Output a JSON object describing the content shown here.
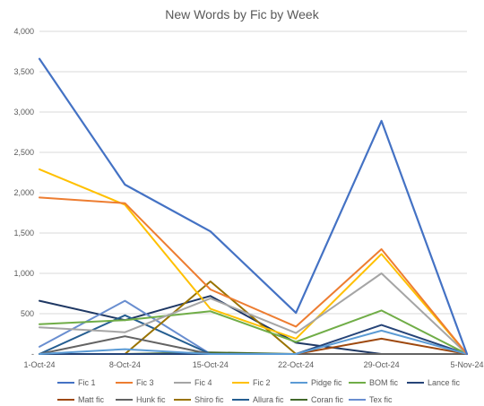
{
  "chart_data": {
    "type": "line",
    "title": "New Words by Fic by Week",
    "xlabel": "",
    "ylabel": "",
    "x": [
      "1-Oct-24",
      "8-Oct-24",
      "15-Oct-24",
      "22-Oct-24",
      "29-Oct-24",
      "5-Nov-24"
    ],
    "ylim": [
      0,
      4000
    ],
    "yticks": [
      0,
      500,
      1000,
      1500,
      2000,
      2500,
      3000,
      3500,
      4000
    ],
    "ytick_labels": [
      "-",
      "500",
      "1,000",
      "1,500",
      "2,000",
      "2,500",
      "3,000",
      "3,500",
      "4,000"
    ],
    "grid": true,
    "legend_position": "bottom",
    "series": [
      {
        "name": "Fic 1",
        "color": "#4472C4",
        "width": 2.2,
        "values": [
          3660,
          2100,
          1520,
          510,
          2890,
          0
        ]
      },
      {
        "name": "Fic 3",
        "color": "#ED7D31",
        "width": 2,
        "values": [
          1940,
          1870,
          800,
          340,
          1300,
          0
        ]
      },
      {
        "name": "Fic 4",
        "color": "#A5A5A5",
        "width": 2,
        "values": [
          330,
          270,
          690,
          260,
          1000,
          0
        ]
      },
      {
        "name": "Fic 2",
        "color": "#FFC000",
        "width": 2,
        "values": [
          2290,
          1850,
          560,
          190,
          1240,
          0
        ]
      },
      {
        "name": "Pidge fic",
        "color": "#5B9BD5",
        "width": 2,
        "values": [
          0,
          60,
          0,
          0,
          290,
          0
        ]
      },
      {
        "name": "BOM fic",
        "color": "#70AD47",
        "width": 2,
        "values": [
          370,
          420,
          530,
          150,
          540,
          0
        ]
      },
      {
        "name": "Lance fic",
        "color": "#264478",
        "width": 2,
        "values": [
          0,
          0,
          0,
          0,
          360,
          0
        ]
      },
      {
        "name": "Matt fic",
        "color": "#9E480E",
        "width": 2,
        "values": [
          0,
          0,
          0,
          0,
          190,
          0
        ]
      },
      {
        "name": "Hunk fic",
        "color": "#636363",
        "width": 2,
        "values": [
          0,
          220,
          0,
          0,
          0,
          0
        ]
      },
      {
        "name": "Shiro fic",
        "color": "#997300",
        "width": 2,
        "values": [
          0,
          0,
          900,
          0,
          0,
          0
        ]
      },
      {
        "name": "Allura fic",
        "color": "#255E91",
        "width": 2,
        "values": [
          0,
          480,
          0,
          0,
          0,
          0
        ]
      },
      {
        "name": "Coran fic",
        "color": "#43682B",
        "width": 2,
        "values": [
          0,
          0,
          20,
          0,
          0,
          0
        ]
      },
      {
        "name": "Tex fic",
        "color": "#698ED0",
        "width": 2,
        "values": [
          90,
          660,
          0,
          0,
          0,
          0
        ]
      },
      {
        "name": "",
        "color": "#1F3864",
        "width": 2,
        "values": [
          660,
          420,
          720,
          140,
          0,
          0
        ]
      }
    ]
  }
}
